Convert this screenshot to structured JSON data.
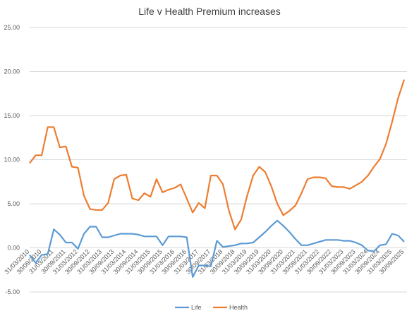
{
  "chart_data": {
    "type": "line",
    "title": "Life v Health Premium increases",
    "categories": [
      "31/03/2010",
      null,
      "30/09/2010",
      null,
      "31/03/2011",
      null,
      "30/09/2011",
      null,
      "31/03/2012",
      null,
      "30/09/2012",
      null,
      "31/03/2013",
      null,
      "30/09/2013",
      null,
      "31/03/2014",
      null,
      "30/09/2014",
      null,
      "31/03/2015",
      null,
      "30/09/2015",
      null,
      "31/03/2016",
      null,
      "30/09/2016",
      null,
      "31/03/2017",
      null,
      "30/09/2017",
      null,
      "31/03/2018",
      null,
      "30/09/2018",
      null,
      "31/03/2019",
      null,
      "30/09/2019",
      null,
      "31/03/2020",
      null,
      "30/09/2020",
      null,
      "31/03/2021",
      null,
      "30/09/2021",
      null,
      "31/03/2022",
      null,
      "30/09/2022",
      null,
      "31/03/2023",
      null,
      "30/09/2023",
      null,
      "31/03/2024",
      null,
      "30/09/2024",
      null,
      "31/03/2025",
      null,
      "30/09/2025"
    ],
    "series": [
      {
        "name": "Life",
        "color": "#5b9bd5",
        "values": [
          -0.8,
          -1.7,
          -0.8,
          -0.7,
          2.1,
          1.5,
          0.6,
          0.6,
          -0.1,
          1.6,
          2.4,
          2.4,
          1.2,
          1.2,
          1.4,
          1.6,
          1.6,
          1.6,
          1.5,
          1.3,
          1.3,
          1.3,
          0.3,
          1.3,
          1.3,
          1.3,
          1.2,
          -3.3,
          -2.0,
          -2.0,
          -2.1,
          0.8,
          0.1,
          0.2,
          0.3,
          0.5,
          0.5,
          0.6,
          1.2,
          1.8,
          2.5,
          3.1,
          2.5,
          1.8,
          1.0,
          0.3,
          0.3,
          0.5,
          0.7,
          0.9,
          0.9,
          0.9,
          0.8,
          0.8,
          0.6,
          0.3,
          -0.3,
          -0.4,
          0.3,
          0.4,
          1.6,
          1.4,
          0.7
        ]
      },
      {
        "name": "Health",
        "color": "#ed7d31",
        "values": [
          9.6,
          10.5,
          10.5,
          13.7,
          13.7,
          11.4,
          11.5,
          9.2,
          9.1,
          5.9,
          4.4,
          4.3,
          4.3,
          5.1,
          7.8,
          8.2,
          8.3,
          5.6,
          5.4,
          6.2,
          5.8,
          7.8,
          6.3,
          6.6,
          6.8,
          7.2,
          5.6,
          4.0,
          5.1,
          4.5,
          8.2,
          8.2,
          7.2,
          4.2,
          2.1,
          3.2,
          5.9,
          8.2,
          9.2,
          8.6,
          7.0,
          5.0,
          3.7,
          4.2,
          4.8,
          6.2,
          7.8,
          8.0,
          8.0,
          7.9,
          7.0,
          6.9,
          6.9,
          6.7,
          7.1,
          7.5,
          8.2,
          9.2,
          10.1,
          11.8,
          14.3,
          17.0,
          19.1
        ]
      }
    ],
    "ylim": [
      -5,
      25
    ],
    "yticks": [
      {
        "value": -5,
        "label": "-5.00"
      },
      {
        "value": 0,
        "label": "0.00"
      },
      {
        "value": 5,
        "label": "5.00"
      },
      {
        "value": 10,
        "label": "10.00"
      },
      {
        "value": 15,
        "label": "15.00"
      },
      {
        "value": 20,
        "label": "20.00"
      },
      {
        "value": 25,
        "label": "25.00"
      }
    ],
    "grid": true,
    "legend": "bottom"
  }
}
